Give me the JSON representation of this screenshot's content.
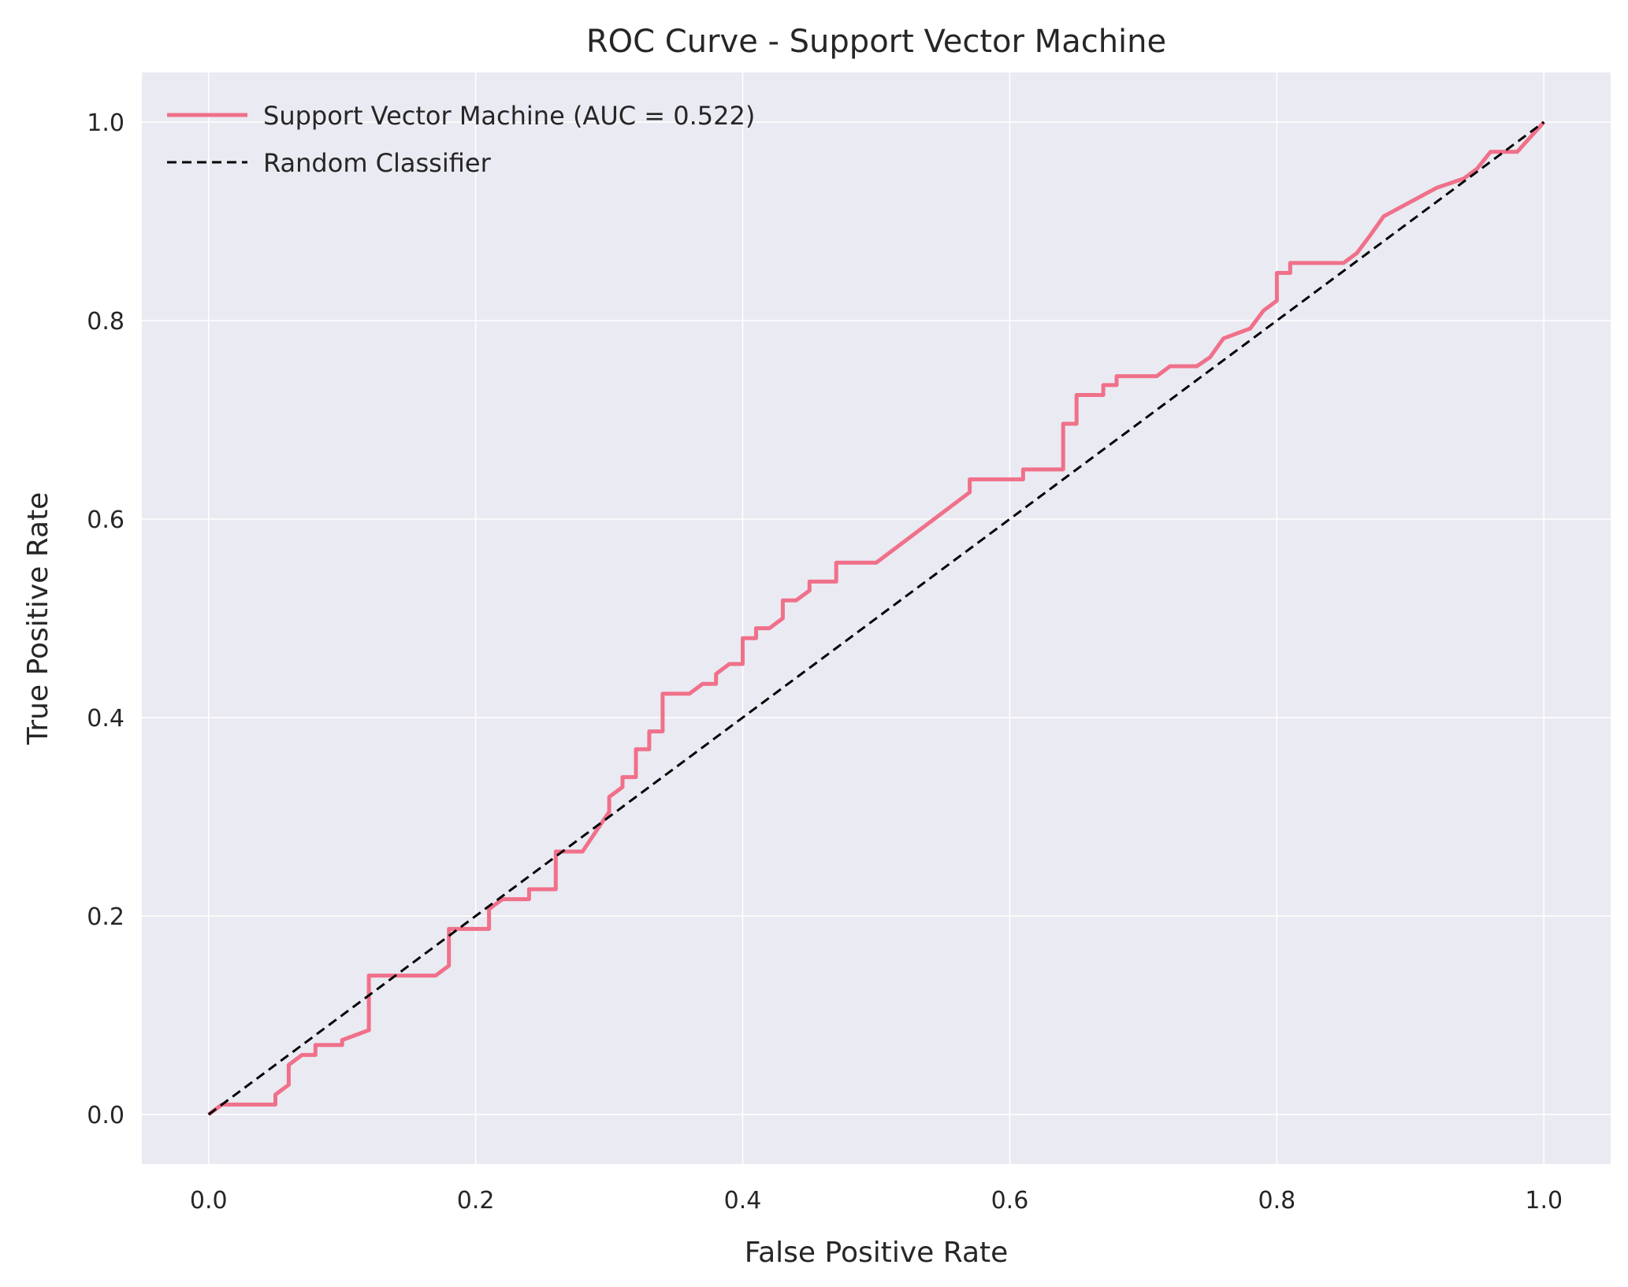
{
  "chart_data": {
    "type": "line",
    "title": "ROC Curve - Support Vector Machine",
    "xlabel": "False Positive Rate",
    "ylabel": "True Positive Rate",
    "xlim": [
      -0.05,
      1.05
    ],
    "ylim": [
      -0.05,
      1.05
    ],
    "xticks": [
      0.0,
      0.2,
      0.4,
      0.6,
      0.8,
      1.0
    ],
    "yticks": [
      0.0,
      0.2,
      0.4,
      0.6,
      0.8,
      1.0
    ],
    "xtick_labels": [
      "0.0",
      "0.2",
      "0.4",
      "0.6",
      "0.8",
      "1.0"
    ],
    "ytick_labels": [
      "0.0",
      "0.2",
      "0.4",
      "0.6",
      "0.8",
      "1.0"
    ],
    "grid": true,
    "legend_position": "top-left",
    "colors": {
      "background": "#eaeaf2",
      "grid": "#ffffff",
      "roc": "#f0708a",
      "random": "#000000"
    },
    "series": [
      {
        "name": "Support Vector Machine (AUC = 0.522)",
        "style": "solid",
        "x": [
          0.0,
          0.01,
          0.05,
          0.05,
          0.06,
          0.06,
          0.07,
          0.08,
          0.08,
          0.1,
          0.1,
          0.12,
          0.12,
          0.17,
          0.18,
          0.18,
          0.21,
          0.21,
          0.22,
          0.24,
          0.24,
          0.26,
          0.26,
          0.28,
          0.29,
          0.3,
          0.3,
          0.31,
          0.31,
          0.32,
          0.32,
          0.33,
          0.33,
          0.34,
          0.34,
          0.36,
          0.37,
          0.38,
          0.38,
          0.39,
          0.4,
          0.4,
          0.41,
          0.41,
          0.42,
          0.43,
          0.43,
          0.44,
          0.45,
          0.45,
          0.47,
          0.47,
          0.5,
          0.57,
          0.57,
          0.61,
          0.61,
          0.64,
          0.64,
          0.65,
          0.65,
          0.67,
          0.67,
          0.68,
          0.68,
          0.71,
          0.72,
          0.74,
          0.75,
          0.76,
          0.77,
          0.78,
          0.78,
          0.79,
          0.79,
          0.8,
          0.8,
          0.81,
          0.81,
          0.85,
          0.86,
          0.86,
          0.87,
          0.87,
          0.88,
          0.88,
          0.92,
          0.92,
          0.94,
          0.94,
          0.95,
          0.95,
          0.96,
          0.98,
          1.0
        ],
        "y": [
          0.0,
          0.01,
          0.01,
          0.02,
          0.03,
          0.05,
          0.06,
          0.06,
          0.07,
          0.07,
          0.075,
          0.085,
          0.14,
          0.14,
          0.15,
          0.187,
          0.187,
          0.207,
          0.217,
          0.217,
          0.227,
          0.227,
          0.265,
          0.265,
          0.285,
          0.305,
          0.32,
          0.33,
          0.34,
          0.34,
          0.368,
          0.368,
          0.386,
          0.386,
          0.424,
          0.424,
          0.434,
          0.434,
          0.444,
          0.454,
          0.454,
          0.48,
          0.48,
          0.49,
          0.49,
          0.5,
          0.518,
          0.518,
          0.528,
          0.537,
          0.537,
          0.556,
          0.556,
          0.627,
          0.64,
          0.64,
          0.65,
          0.65,
          0.696,
          0.696,
          0.725,
          0.725,
          0.735,
          0.735,
          0.744,
          0.744,
          0.754,
          0.754,
          0.763,
          0.782,
          0.787,
          0.792,
          0.792,
          0.81,
          0.81,
          0.82,
          0.848,
          0.848,
          0.858,
          0.858,
          0.868,
          0.868,
          0.886,
          0.886,
          0.905,
          0.905,
          0.934,
          0.934,
          0.943,
          0.943,
          0.953,
          0.953,
          0.97,
          0.97,
          1.0
        ]
      },
      {
        "name": "Random Classifier",
        "style": "dashed",
        "x": [
          0.0,
          1.0
        ],
        "y": [
          0.0,
          1.0
        ]
      }
    ]
  }
}
